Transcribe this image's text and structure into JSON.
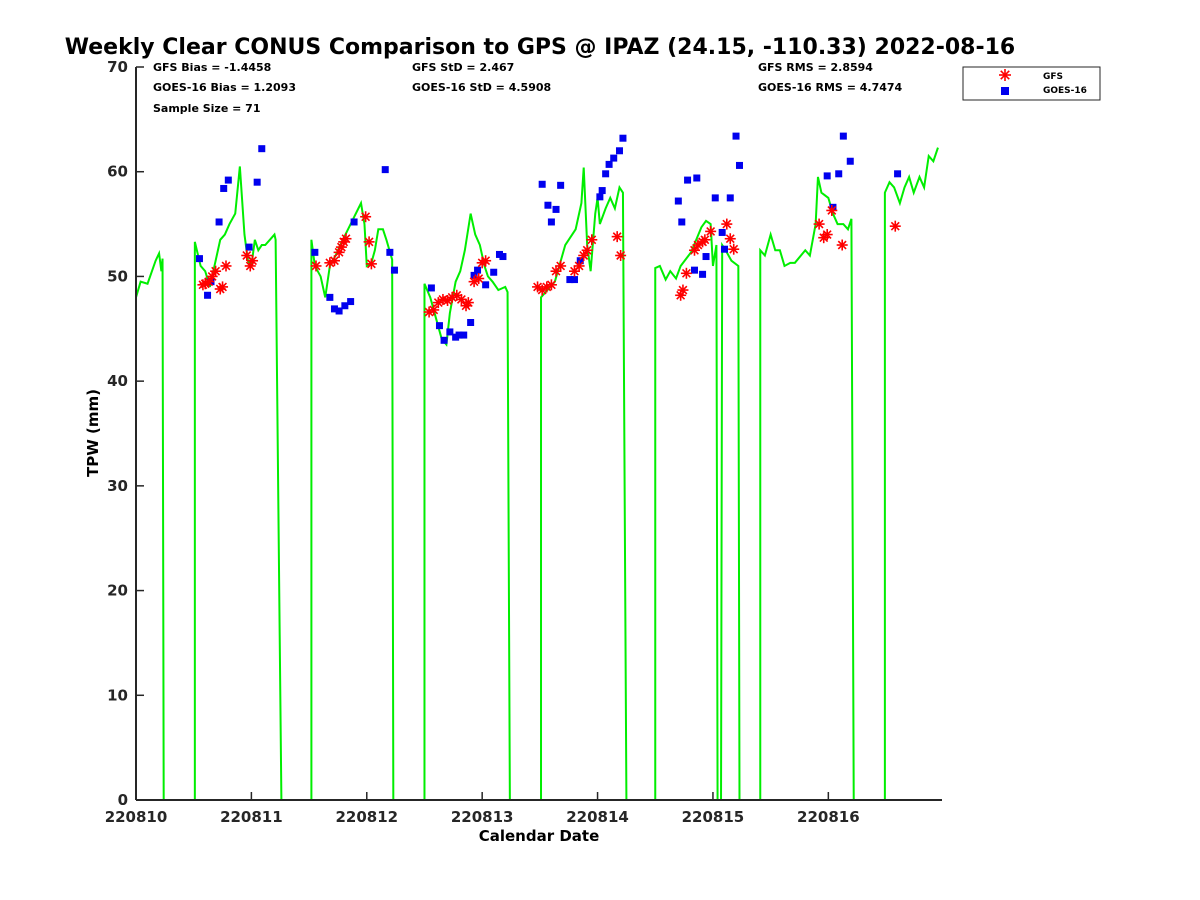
{
  "chart_data": {
    "type": "line+scatter",
    "title": "Weekly Clear CONUS Comparison to GPS @ IPAZ (24.15, -110.33) 2022-08-16",
    "xlabel": "Calendar Date",
    "ylabel": "TPW (mm)",
    "x_units": "days since 220810",
    "xlim": [
      0,
      6.985
    ],
    "ylim": [
      0,
      70
    ],
    "xticks": [
      0,
      1,
      2,
      3,
      4,
      5,
      6
    ],
    "xtick_labels": [
      "220810",
      "220811",
      "220812",
      "220813",
      "220814",
      "220815",
      "220816"
    ],
    "yticks": [
      0,
      10,
      20,
      30,
      40,
      50,
      60,
      70
    ],
    "ytick_labels": [
      "0",
      "10",
      "20",
      "30",
      "40",
      "50",
      "60",
      "70"
    ],
    "stats": {
      "gfs_bias": "GFS Bias = -1.4458",
      "goes_bias": "GOES-16 Bias = 1.2093",
      "sample_size": "Sample Size = 71",
      "gfs_std": "GFS StD = 2.467",
      "goes_std": "GOES-16 StD = 4.5908",
      "gfs_rms": "GFS RMS = 2.8594",
      "goes_rms": "GOES-16 RMS = 4.7474"
    },
    "legend": {
      "position": "top-right outside",
      "entries": [
        "GFS",
        "GOES-16"
      ]
    },
    "colors": {
      "gps": "#00ee00",
      "gfs": "#ff0000",
      "goes": "#0000ee",
      "axis": "#262626"
    },
    "series": [
      {
        "name": "GPS",
        "type": "line",
        "points": [
          [
            0,
            48
          ],
          [
            0.04,
            49.5
          ],
          [
            0.1,
            49.3
          ],
          [
            0.17,
            51.5
          ],
          [
            0.2,
            52.2
          ],
          [
            0.22,
            50.5
          ],
          [
            0.23,
            51.7
          ],
          [
            0.24,
            0
          ],
          [
            0.51,
            0
          ],
          [
            0.51,
            53.3
          ],
          [
            0.56,
            51
          ],
          [
            0.6,
            50.5
          ],
          [
            0.64,
            49
          ],
          [
            0.68,
            51
          ],
          [
            0.73,
            53.5
          ],
          [
            0.77,
            54
          ],
          [
            0.81,
            55
          ],
          [
            0.86,
            56
          ],
          [
            0.9,
            60.5
          ],
          [
            0.94,
            54
          ],
          [
            0.97,
            51.5
          ],
          [
            1.0,
            51
          ],
          [
            1.03,
            53.5
          ],
          [
            1.06,
            52.5
          ],
          [
            1.09,
            53
          ],
          [
            1.12,
            53
          ],
          [
            1.16,
            53.5
          ],
          [
            1.2,
            54
          ],
          [
            1.21,
            53.5
          ],
          [
            1.26,
            0
          ],
          [
            1.52,
            0
          ],
          [
            1.52,
            53.5
          ],
          [
            1.55,
            51
          ],
          [
            1.6,
            50
          ],
          [
            1.64,
            48
          ],
          [
            1.68,
            51
          ],
          [
            1.73,
            52
          ],
          [
            1.77,
            53
          ],
          [
            1.86,
            55
          ],
          [
            1.95,
            57
          ],
          [
            1.98,
            55
          ],
          [
            2.0,
            51
          ],
          [
            2.04,
            51.3
          ],
          [
            2.07,
            52.5
          ],
          [
            2.1,
            54.5
          ],
          [
            2.14,
            54.5
          ],
          [
            2.17,
            53.5
          ],
          [
            2.22,
            51.6
          ],
          [
            2.23,
            0
          ],
          [
            2.5,
            0
          ],
          [
            2.5,
            49.3
          ],
          [
            2.55,
            48
          ],
          [
            2.6,
            46
          ],
          [
            2.65,
            44
          ],
          [
            2.69,
            43.5
          ],
          [
            2.72,
            46.5
          ],
          [
            2.77,
            49.5
          ],
          [
            2.81,
            50.5
          ],
          [
            2.85,
            52.5
          ],
          [
            2.9,
            56
          ],
          [
            2.94,
            54
          ],
          [
            2.98,
            53
          ],
          [
            3.02,
            51
          ],
          [
            3.05,
            50
          ],
          [
            3.09,
            49.5
          ],
          [
            3.14,
            48.7
          ],
          [
            3.2,
            49
          ],
          [
            3.22,
            48.5
          ],
          [
            3.24,
            0
          ],
          [
            3.51,
            0
          ],
          [
            3.51,
            48
          ],
          [
            3.63,
            49.5
          ],
          [
            3.72,
            53
          ],
          [
            3.81,
            54.5
          ],
          [
            3.86,
            57
          ],
          [
            3.88,
            60.4
          ],
          [
            3.91,
            53
          ],
          [
            3.94,
            50.5
          ],
          [
            3.98,
            56
          ],
          [
            4.0,
            57.5
          ],
          [
            4.02,
            55
          ],
          [
            4.07,
            56.5
          ],
          [
            4.11,
            57.5
          ],
          [
            4.15,
            56.5
          ],
          [
            4.19,
            58.5
          ],
          [
            4.22,
            58
          ],
          [
            4.25,
            0
          ],
          [
            4.5,
            0
          ],
          [
            4.5,
            50.8
          ],
          [
            4.54,
            51
          ],
          [
            4.59,
            49.7
          ],
          [
            4.63,
            50.5
          ],
          [
            4.68,
            49.8
          ],
          [
            4.72,
            51
          ],
          [
            4.81,
            52.3
          ],
          [
            4.9,
            54.7
          ],
          [
            4.94,
            55.3
          ],
          [
            4.98,
            55
          ],
          [
            5.0,
            51
          ],
          [
            5.03,
            53
          ],
          [
            5.04,
            0
          ],
          [
            5.07,
            0
          ],
          [
            5.08,
            53
          ],
          [
            5.11,
            52.5
          ],
          [
            5.16,
            51.5
          ],
          [
            5.22,
            51
          ],
          [
            5.23,
            0
          ],
          [
            5.41,
            0
          ],
          [
            5.41,
            52.5
          ],
          [
            5.45,
            52
          ],
          [
            5.5,
            54
          ],
          [
            5.54,
            52.5
          ],
          [
            5.58,
            52.5
          ],
          [
            5.62,
            51
          ],
          [
            5.67,
            51.3
          ],
          [
            5.71,
            51.3
          ],
          [
            5.8,
            52.5
          ],
          [
            5.84,
            52
          ],
          [
            5.89,
            55
          ],
          [
            5.91,
            59.5
          ],
          [
            5.94,
            58
          ],
          [
            6.0,
            57.5
          ],
          [
            6.04,
            56
          ],
          [
            6.08,
            55
          ],
          [
            6.13,
            55
          ],
          [
            6.17,
            54.5
          ],
          [
            6.2,
            55.5
          ],
          [
            6.22,
            0
          ],
          [
            6.49,
            0
          ],
          [
            6.49,
            58
          ],
          [
            6.53,
            59
          ],
          [
            6.57,
            58.5
          ],
          [
            6.62,
            57
          ],
          [
            6.66,
            58.5
          ],
          [
            6.7,
            59.5
          ],
          [
            6.74,
            58
          ],
          [
            6.79,
            59.5
          ],
          [
            6.83,
            58.5
          ],
          [
            6.87,
            61.5
          ],
          [
            6.91,
            61
          ],
          [
            6.95,
            62.3
          ]
        ]
      },
      {
        "name": "GFS",
        "type": "scatter",
        "marker": "asterisk",
        "points": [
          [
            0.58,
            49.2
          ],
          [
            0.6,
            49.3
          ],
          [
            0.63,
            49.5
          ],
          [
            0.66,
            50
          ],
          [
            0.69,
            50.5
          ],
          [
            0.73,
            48.8
          ],
          [
            0.75,
            49
          ],
          [
            0.78,
            51
          ],
          [
            0.96,
            52
          ],
          [
            0.99,
            51
          ],
          [
            1.01,
            51.5
          ],
          [
            1.56,
            51
          ],
          [
            1.68,
            51.3
          ],
          [
            1.72,
            51.5
          ],
          [
            1.76,
            52.3
          ],
          [
            1.78,
            52.8
          ],
          [
            1.8,
            53.3
          ],
          [
            1.82,
            53.6
          ],
          [
            1.99,
            55.7
          ],
          [
            2.02,
            53.3
          ],
          [
            2.04,
            51.2
          ],
          [
            2.54,
            46.6
          ],
          [
            2.58,
            46.8
          ],
          [
            2.62,
            47.5
          ],
          [
            2.66,
            47.8
          ],
          [
            2.7,
            47.7
          ],
          [
            2.74,
            48
          ],
          [
            2.78,
            48.2
          ],
          [
            2.82,
            47.8
          ],
          [
            2.86,
            47.2
          ],
          [
            2.88,
            47.5
          ],
          [
            2.93,
            49.5
          ],
          [
            2.97,
            49.8
          ],
          [
            3.0,
            51.3
          ],
          [
            3.03,
            51.5
          ],
          [
            3.48,
            49
          ],
          [
            3.52,
            48.7
          ],
          [
            3.56,
            49
          ],
          [
            3.6,
            49.2
          ],
          [
            3.64,
            50.5
          ],
          [
            3.68,
            51
          ],
          [
            3.8,
            50.5
          ],
          [
            3.84,
            51
          ],
          [
            3.88,
            52
          ],
          [
            3.91,
            52.5
          ],
          [
            3.95,
            53.5
          ],
          [
            4.17,
            53.8
          ],
          [
            4.2,
            52
          ],
          [
            4.72,
            48.2
          ],
          [
            4.74,
            48.7
          ],
          [
            4.77,
            50.3
          ],
          [
            4.84,
            52.5
          ],
          [
            4.87,
            53
          ],
          [
            4.91,
            53.3
          ],
          [
            4.93,
            53.5
          ],
          [
            4.98,
            54.3
          ],
          [
            5.12,
            55
          ],
          [
            5.15,
            53.6
          ],
          [
            5.18,
            52.6
          ],
          [
            5.92,
            55
          ],
          [
            5.96,
            53.7
          ],
          [
            5.99,
            54
          ],
          [
            6.03,
            56.3
          ],
          [
            6.12,
            53
          ],
          [
            6.58,
            54.8
          ]
        ]
      },
      {
        "name": "GOES-16",
        "type": "scatter",
        "marker": "square",
        "points": [
          [
            0.55,
            51.7
          ],
          [
            0.62,
            48.2
          ],
          [
            0.65,
            49.5
          ],
          [
            0.72,
            55.2
          ],
          [
            0.76,
            58.4
          ],
          [
            0.8,
            59.2
          ],
          [
            0.98,
            52.8
          ],
          [
            1.05,
            59
          ],
          [
            1.09,
            62.2
          ],
          [
            1.55,
            52.3
          ],
          [
            1.68,
            48
          ],
          [
            1.72,
            46.9
          ],
          [
            1.76,
            46.7
          ],
          [
            1.81,
            47.2
          ],
          [
            1.86,
            47.6
          ],
          [
            1.89,
            55.2
          ],
          [
            2.16,
            60.2
          ],
          [
            2.2,
            52.3
          ],
          [
            2.24,
            50.6
          ],
          [
            2.56,
            48.9
          ],
          [
            2.63,
            45.3
          ],
          [
            2.67,
            43.9
          ],
          [
            2.72,
            44.7
          ],
          [
            2.77,
            44.2
          ],
          [
            2.8,
            44.4
          ],
          [
            2.84,
            44.4
          ],
          [
            2.9,
            45.6
          ],
          [
            2.93,
            50.1
          ],
          [
            2.96,
            50.6
          ],
          [
            3.03,
            49.2
          ],
          [
            3.1,
            50.4
          ],
          [
            3.15,
            52.1
          ],
          [
            3.18,
            51.9
          ],
          [
            3.52,
            58.8
          ],
          [
            3.57,
            56.8
          ],
          [
            3.6,
            55.2
          ],
          [
            3.64,
            56.4
          ],
          [
            3.68,
            58.7
          ],
          [
            3.76,
            49.7
          ],
          [
            3.8,
            49.7
          ],
          [
            3.85,
            51.5
          ],
          [
            4.02,
            57.6
          ],
          [
            4.04,
            58.2
          ],
          [
            4.07,
            59.8
          ],
          [
            4.1,
            60.7
          ],
          [
            4.14,
            61.3
          ],
          [
            4.19,
            62
          ],
          [
            4.22,
            63.2
          ],
          [
            4.7,
            57.2
          ],
          [
            4.73,
            55.2
          ],
          [
            4.78,
            59.2
          ],
          [
            4.86,
            59.4
          ],
          [
            4.84,
            50.6
          ],
          [
            4.91,
            50.2
          ],
          [
            4.94,
            51.9
          ],
          [
            5.02,
            57.5
          ],
          [
            5.08,
            54.2
          ],
          [
            5.1,
            52.6
          ],
          [
            5.15,
            57.5
          ],
          [
            5.2,
            63.4
          ],
          [
            5.23,
            60.6
          ],
          [
            5.99,
            59.6
          ],
          [
            6.04,
            56.6
          ],
          [
            6.09,
            59.8
          ],
          [
            6.13,
            63.4
          ],
          [
            6.19,
            61
          ],
          [
            6.6,
            59.8
          ]
        ]
      }
    ]
  }
}
